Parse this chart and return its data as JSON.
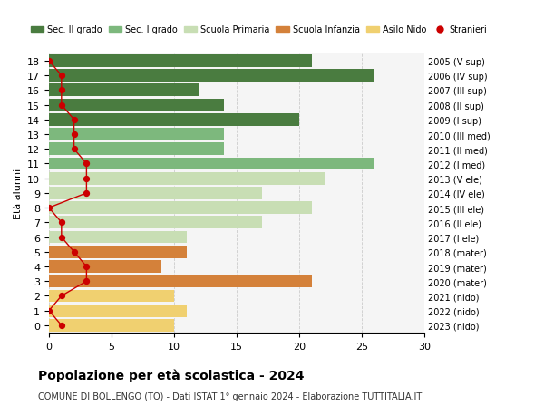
{
  "ages": [
    18,
    17,
    16,
    15,
    14,
    13,
    12,
    11,
    10,
    9,
    8,
    7,
    6,
    5,
    4,
    3,
    2,
    1,
    0
  ],
  "bar_values": [
    21,
    26,
    12,
    14,
    20,
    14,
    14,
    26,
    22,
    17,
    21,
    17,
    11,
    11,
    9,
    21,
    10,
    11,
    10
  ],
  "bar_colors": [
    "#4a7c40",
    "#4a7c40",
    "#4a7c40",
    "#4a7c40",
    "#4a7c40",
    "#7db87d",
    "#7db87d",
    "#7db87d",
    "#c8deb4",
    "#c8deb4",
    "#c8deb4",
    "#c8deb4",
    "#c8deb4",
    "#d4813a",
    "#d4813a",
    "#d4813a",
    "#f0d070",
    "#f0d070",
    "#f0d070"
  ],
  "stranieri_values": [
    0,
    1,
    1,
    1,
    2,
    2,
    2,
    3,
    3,
    3,
    0,
    1,
    1,
    2,
    3,
    3,
    1,
    0,
    1
  ],
  "right_labels": [
    "2005 (V sup)",
    "2006 (IV sup)",
    "2007 (III sup)",
    "2008 (II sup)",
    "2009 (I sup)",
    "2010 (III med)",
    "2011 (II med)",
    "2012 (I med)",
    "2013 (V ele)",
    "2014 (IV ele)",
    "2015 (III ele)",
    "2016 (II ele)",
    "2017 (I ele)",
    "2018 (mater)",
    "2019 (mater)",
    "2020 (mater)",
    "2021 (nido)",
    "2022 (nido)",
    "2023 (nido)"
  ],
  "legend_labels": [
    "Sec. II grado",
    "Sec. I grado",
    "Scuola Primaria",
    "Scuola Infanzia",
    "Asilo Nido",
    "Stranieri"
  ],
  "legend_colors": [
    "#4a7c40",
    "#7db87d",
    "#c8deb4",
    "#d4813a",
    "#f0d070",
    "#cc0000"
  ],
  "title": "Popolazione per età scolastica - 2024",
  "subtitle": "COMUNE DI BOLLENGO (TO) - Dati ISTAT 1° gennaio 2024 - Elaborazione TUTTITALIA.IT",
  "ylabel": "Età alunni",
  "xlim": [
    0,
    30
  ],
  "xticks": [
    0,
    5,
    10,
    15,
    20,
    25,
    30
  ],
  "bg_color": "#ffffff",
  "plot_bg_color": "#f5f5f5",
  "grid_color": "#cccccc"
}
